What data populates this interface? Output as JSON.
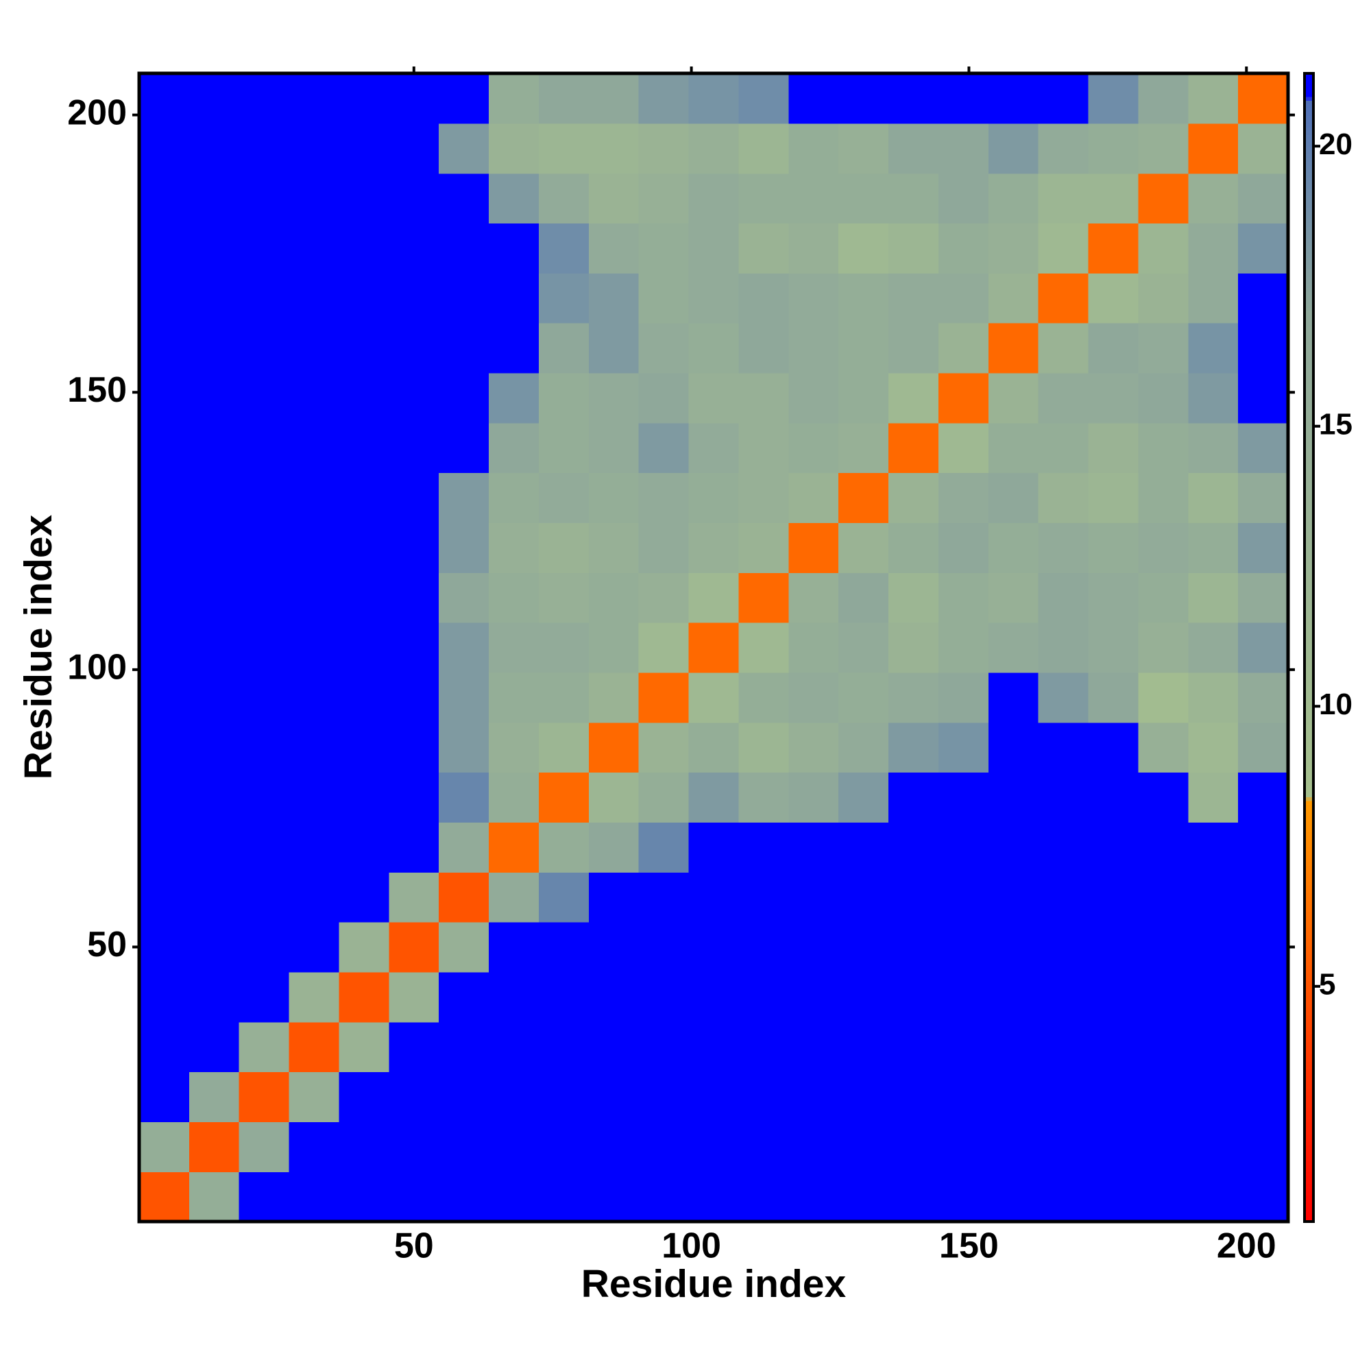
{
  "chart_data": {
    "type": "heatmap",
    "xlabel": "Residue index",
    "ylabel": "Residue index",
    "xlim": [
      0.5,
      207.5
    ],
    "ylim": [
      0.5,
      207.5
    ],
    "xticks": [
      50,
      100,
      150,
      200
    ],
    "yticks": [
      50,
      100,
      150,
      200
    ],
    "zlim": [
      0.8,
      21.3
    ],
    "zticks": [
      5,
      10,
      15,
      20
    ],
    "colorscale": [
      [
        0.8,
        "#ff0000"
      ],
      [
        3.0,
        "#ff2a00"
      ],
      [
        8.3,
        "#ff9900"
      ],
      [
        8.4,
        "#a6c08e"
      ],
      [
        17,
        "#8fa89a"
      ],
      [
        20,
        "#5f7fb0"
      ],
      [
        20.8,
        "#4f6fb8"
      ],
      [
        20.9,
        "#0000ff"
      ],
      [
        21.3,
        "#0000ff"
      ]
    ],
    "xbins": [
      0.5,
      9.5,
      18.5,
      27.5,
      36.5,
      45.5,
      54.5,
      63.5,
      72.5,
      81.5,
      90.5,
      99.5,
      108.5,
      117.5,
      126.5,
      135.5,
      144.5,
      153.5,
      162.5,
      171.5,
      180.5,
      189.5,
      198.5,
      207.5
    ],
    "ybins": [
      0.5,
      9.5,
      18.5,
      27.5,
      36.5,
      45.5,
      54.5,
      63.5,
      72.5,
      81.5,
      90.5,
      99.5,
      108.5,
      117.5,
      126.5,
      135.5,
      144.5,
      153.5,
      162.5,
      171.5,
      180.5,
      189.5,
      198.5,
      207.5
    ],
    "z": [
      [
        5,
        15,
        21.3,
        21.3,
        21.3,
        21.3,
        21.3,
        21.3,
        21.3,
        21.3,
        21.3,
        21.3,
        21.3,
        21.3,
        21.3,
        21.3,
        21.3,
        21.3,
        21.3,
        21.3,
        21.3,
        21.3,
        21.3
      ],
      [
        15,
        5,
        16,
        21.3,
        21.3,
        21.3,
        21.3,
        21.3,
        21.3,
        21.3,
        21.3,
        21.3,
        21.3,
        21.3,
        21.3,
        21.3,
        21.3,
        21.3,
        21.3,
        21.3,
        21.3,
        21.3,
        21.3
      ],
      [
        21.3,
        16,
        5,
        14,
        21.3,
        21.3,
        21.3,
        21.3,
        21.3,
        21.3,
        21.3,
        21.3,
        21.3,
        21.3,
        21.3,
        21.3,
        21.3,
        21.3,
        21.3,
        21.3,
        21.3,
        21.3,
        21.3
      ],
      [
        21.3,
        21.3,
        14,
        5,
        13,
        21.3,
        21.3,
        21.3,
        21.3,
        21.3,
        21.3,
        21.3,
        21.3,
        21.3,
        21.3,
        21.3,
        21.3,
        21.3,
        21.3,
        21.3,
        21.3,
        21.3,
        21.3
      ],
      [
        21.3,
        21.3,
        21.3,
        13,
        5,
        13,
        21.3,
        21.3,
        21.3,
        21.3,
        21.3,
        21.3,
        21.3,
        21.3,
        21.3,
        21.3,
        21.3,
        21.3,
        21.3,
        21.3,
        21.3,
        21.3,
        21.3
      ],
      [
        21.3,
        21.3,
        21.3,
        21.3,
        13,
        5,
        14,
        21.3,
        21.3,
        21.3,
        21.3,
        21.3,
        21.3,
        21.3,
        21.3,
        21.3,
        21.3,
        21.3,
        21.3,
        21.3,
        21.3,
        21.3,
        21.3
      ],
      [
        21.3,
        21.3,
        21.3,
        21.3,
        21.3,
        14,
        5,
        16,
        19.5,
        21.3,
        21.3,
        21.3,
        21.3,
        21.3,
        21.3,
        21.3,
        21.3,
        21.3,
        21.3,
        21.3,
        21.3,
        21.3,
        21.3
      ],
      [
        21.3,
        21.3,
        21.3,
        21.3,
        21.3,
        21.3,
        16,
        6,
        15,
        17,
        19.5,
        21.3,
        21.3,
        21.3,
        21.3,
        21.3,
        21.3,
        21.3,
        21.3,
        21.3,
        21.3,
        21.3,
        21.3
      ],
      [
        21.3,
        21.3,
        21.3,
        21.3,
        21.3,
        21.3,
        19.5,
        15,
        6,
        12,
        15,
        18,
        16,
        17,
        18,
        21.3,
        21.3,
        21.3,
        21.3,
        21.3,
        21.3,
        12,
        21.3
      ],
      [
        21.3,
        21.3,
        21.3,
        21.3,
        21.3,
        21.3,
        18,
        14,
        12,
        6,
        13,
        15,
        12,
        14,
        16,
        18,
        18.5,
        21.3,
        21.3,
        21.3,
        14,
        11,
        17
      ],
      [
        21.3,
        21.3,
        21.3,
        21.3,
        21.3,
        21.3,
        18,
        15,
        15,
        13,
        6,
        11,
        15,
        16,
        15,
        16,
        17,
        21.3,
        18,
        17,
        10,
        12,
        16
      ],
      [
        21.3,
        21.3,
        21.3,
        21.3,
        21.3,
        21.3,
        18,
        16,
        16,
        15,
        11,
        6,
        11,
        15,
        16,
        13,
        15,
        16,
        17,
        16,
        14,
        16,
        18
      ],
      [
        21.3,
        21.3,
        21.3,
        21.3,
        21.3,
        21.3,
        17,
        15,
        14,
        15,
        14,
        11,
        6,
        14,
        17,
        12,
        15,
        14,
        17,
        16,
        15,
        12,
        16
      ],
      [
        21.3,
        21.3,
        21.3,
        21.3,
        21.3,
        21.3,
        18,
        14,
        13,
        14,
        16,
        14,
        13,
        6,
        13,
        15,
        17,
        15,
        16,
        15,
        16,
        15,
        18
      ],
      [
        21.3,
        21.3,
        21.3,
        21.3,
        21.3,
        21.3,
        18,
        15,
        16,
        15,
        16,
        15,
        14,
        13,
        6,
        13,
        16,
        17,
        13,
        12,
        15,
        12,
        16
      ],
      [
        21.3,
        21.3,
        21.3,
        21.3,
        21.3,
        21.3,
        21.3,
        17,
        15,
        16,
        18,
        16,
        14,
        15,
        14,
        6,
        11,
        15,
        15,
        13,
        15,
        16,
        18
      ],
      [
        21.3,
        21.3,
        21.3,
        21.3,
        21.3,
        21.3,
        21.3,
        18.5,
        15,
        16,
        17,
        14,
        14,
        16,
        15,
        11,
        6,
        13,
        16,
        16,
        17,
        18,
        21.3
      ],
      [
        21.3,
        21.3,
        21.3,
        21.3,
        21.3,
        21.3,
        21.3,
        21.3,
        17,
        18,
        16,
        15,
        17,
        16,
        15,
        16,
        13,
        6,
        13,
        17,
        16,
        18.5,
        21.3
      ],
      [
        21.3,
        21.3,
        21.3,
        21.3,
        21.3,
        21.3,
        21.3,
        21.3,
        18.5,
        18,
        15,
        16,
        17,
        16,
        15,
        16,
        16,
        13,
        6,
        11,
        13,
        16,
        21.3
      ],
      [
        21.3,
        21.3,
        21.3,
        21.3,
        21.3,
        21.3,
        21.3,
        21.3,
        19,
        16,
        15,
        16,
        13,
        14,
        11,
        12,
        15,
        14,
        11,
        6,
        12,
        16,
        18.5
      ],
      [
        21.3,
        21.3,
        21.3,
        21.3,
        21.3,
        21.3,
        21.3,
        18,
        16,
        13,
        14,
        16,
        15,
        15,
        15,
        15,
        17,
        15,
        12,
        12,
        6,
        14,
        17
      ],
      [
        21.3,
        21.3,
        21.3,
        21.3,
        21.3,
        21.3,
        18,
        13,
        12,
        12,
        13,
        14,
        12,
        15,
        14,
        17,
        17,
        18,
        16,
        15,
        14,
        6,
        13
      ],
      [
        21.3,
        21.3,
        21.3,
        21.3,
        21.3,
        21.3,
        21.3,
        15,
        17,
        17,
        18,
        18.5,
        19,
        21.3,
        21.3,
        21.3,
        21.3,
        21.3,
        21.3,
        19,
        17,
        13,
        6
      ]
    ]
  }
}
